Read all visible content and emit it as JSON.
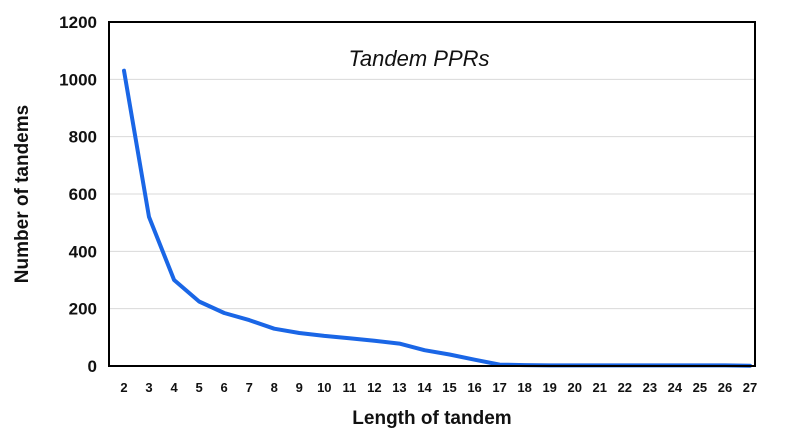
{
  "chart_data": {
    "type": "line",
    "title": "Tandem PPRs",
    "xlabel": "Length of tandem",
    "ylabel": "Number of tandems",
    "ylim": [
      0,
      1200
    ],
    "yticks": [
      "0",
      "200",
      "400",
      "600",
      "800",
      "1000",
      "1200"
    ],
    "categories": [
      "2",
      "3",
      "4",
      "5",
      "6",
      "7",
      "8",
      "9",
      "10",
      "11",
      "12",
      "13",
      "14",
      "15",
      "16",
      "17",
      "18",
      "19",
      "20",
      "21",
      "22",
      "23",
      "24",
      "25",
      "26",
      "27"
    ],
    "series": [
      {
        "values": [
          1030,
          520,
          300,
          225,
          185,
          160,
          130,
          115,
          105,
          97,
          88,
          78,
          55,
          40,
          22,
          5,
          3,
          2,
          2,
          2,
          2,
          2,
          2,
          2,
          2,
          1
        ]
      }
    ],
    "grid": true,
    "line_color": "#1a66e6"
  }
}
